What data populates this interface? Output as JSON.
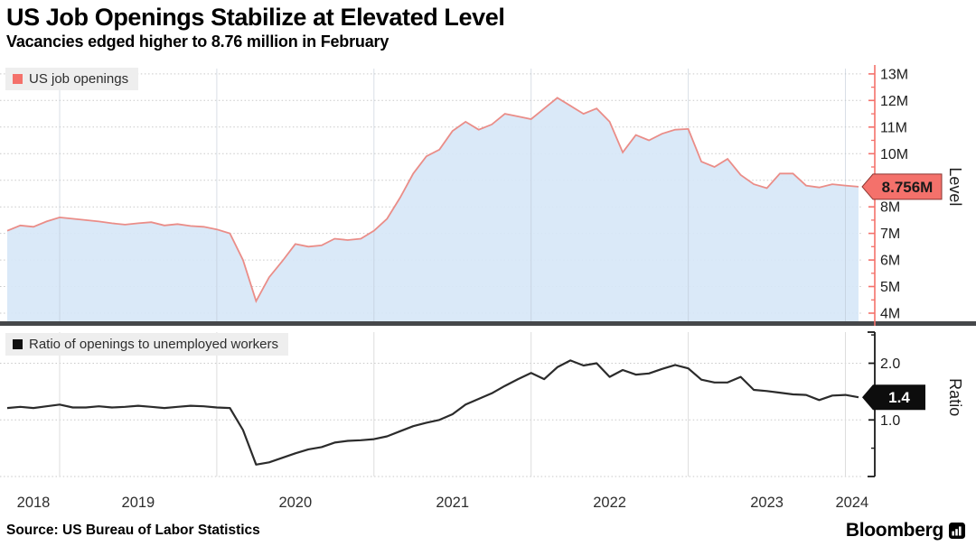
{
  "header": {
    "title": "US Job Openings Stabilize at Elevated Level",
    "subtitle": "Vacancies edged higher to 8.76 million in February"
  },
  "footer": {
    "source": "Source: US Bureau of Labor Statistics",
    "brand": "Bloomberg"
  },
  "colors": {
    "openings_line": "#ea8d88",
    "openings_fill": "#d7e7f8",
    "level_axis": "#f4716b",
    "level_tag_bg": "#f4716b",
    "level_tag_text": "#1a1a1a",
    "ratio_line": "#2b2b2b",
    "ratio_axis": "#1a1a1a",
    "ratio_tag_bg": "#0d0d0d",
    "ratio_tag_text": "#ffffff",
    "divider": "#45474a",
    "gridline": "#c9c9c9",
    "legend_bg": "#eeeeee"
  },
  "x_axis": {
    "labels": [
      "2018",
      "2019",
      "2020",
      "2021",
      "2022",
      "2023",
      "2024"
    ],
    "gridlines": [
      "2019-01",
      "2020-01",
      "2021-01",
      "2022-01",
      "2023-01",
      "2024-01"
    ]
  },
  "chart_data": [
    {
      "type": "area",
      "panel": "top",
      "name": "US job openings",
      "axis_label": "Level",
      "unit": "millions",
      "frequency": "monthly",
      "x_start": "2018-09",
      "x_end": "2024-02",
      "ylim": [
        3.66,
        13.2
      ],
      "yticks": [
        4,
        5,
        6,
        7,
        8,
        9,
        10,
        11,
        12,
        13
      ],
      "ytick_labels": [
        "4M",
        "5M",
        "6M",
        "7M",
        "8M",
        "9M",
        "10M",
        "11M",
        "12M",
        "13M"
      ],
      "yticks_minor": [
        4.5,
        5.5,
        6.5,
        7.5,
        8.5,
        9.5,
        10.5,
        11.5,
        12.5
      ],
      "last_value": 8.756,
      "last_value_label": "8.756M",
      "values_millions": [
        7.1,
        7.3,
        7.25,
        7.45,
        7.6,
        7.55,
        7.5,
        7.45,
        7.38,
        7.33,
        7.38,
        7.42,
        7.3,
        7.35,
        7.28,
        7.25,
        7.15,
        7.0,
        6.0,
        4.45,
        5.35,
        5.95,
        6.6,
        6.5,
        6.55,
        6.8,
        6.75,
        6.8,
        7.1,
        7.55,
        8.35,
        9.25,
        9.9,
        10.15,
        10.85,
        11.2,
        10.9,
        11.1,
        11.5,
        11.4,
        11.3,
        11.7,
        12.1,
        11.8,
        11.5,
        11.7,
        11.2,
        10.05,
        10.7,
        10.5,
        10.75,
        10.9,
        10.93,
        9.7,
        9.5,
        9.8,
        9.2,
        8.85,
        8.7,
        9.25,
        9.25,
        8.8,
        8.73,
        8.85,
        8.8,
        8.756
      ]
    },
    {
      "type": "line",
      "panel": "bottom",
      "name": "Ratio of openings to unemployed workers",
      "axis_label": "Ratio",
      "frequency": "monthly",
      "x_start": "2018-09",
      "x_end": "2024-02",
      "ylim": [
        0,
        2.55
      ],
      "yticks": [
        1,
        2
      ],
      "ytick_labels": [
        "1.0",
        "2.0"
      ],
      "yticks_minor": [
        0.5,
        1.5,
        2.5
      ],
      "gridline_values": [
        0,
        1,
        2
      ],
      "last_value": 1.4,
      "last_value_label": "1.4",
      "values": [
        1.21,
        1.23,
        1.21,
        1.24,
        1.27,
        1.22,
        1.22,
        1.24,
        1.22,
        1.23,
        1.25,
        1.23,
        1.21,
        1.23,
        1.25,
        1.24,
        1.22,
        1.21,
        0.82,
        0.21,
        0.25,
        0.33,
        0.41,
        0.48,
        0.52,
        0.6,
        0.63,
        0.64,
        0.66,
        0.71,
        0.8,
        0.89,
        0.95,
        1.0,
        1.1,
        1.27,
        1.37,
        1.47,
        1.6,
        1.72,
        1.83,
        1.72,
        1.93,
        2.05,
        1.96,
        2.0,
        1.76,
        1.88,
        1.8,
        1.82,
        1.9,
        1.97,
        1.91,
        1.71,
        1.66,
        1.66,
        1.76,
        1.53,
        1.51,
        1.48,
        1.45,
        1.44,
        1.35,
        1.43,
        1.44,
        1.4
      ]
    }
  ]
}
